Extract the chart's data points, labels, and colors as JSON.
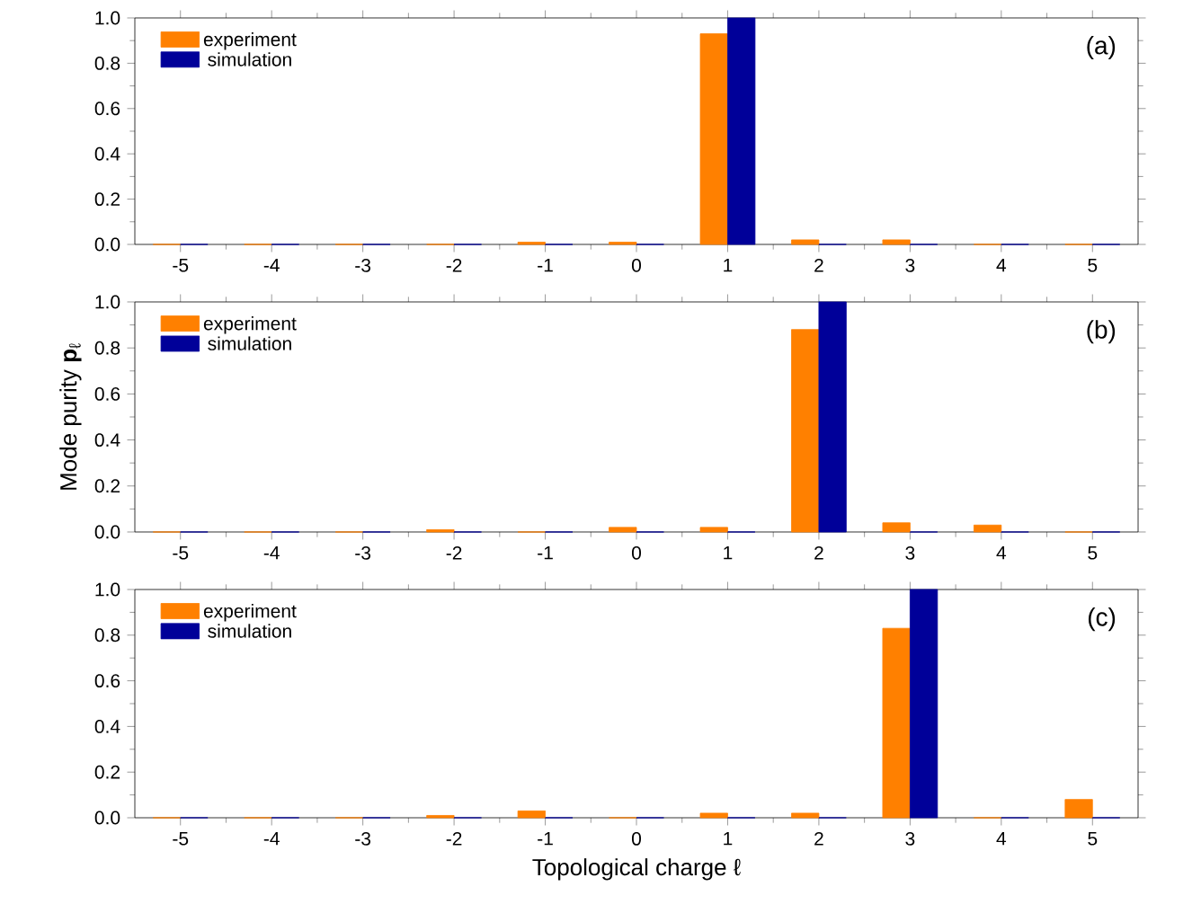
{
  "chart_data": [
    {
      "type": "bar",
      "categories": [
        "-5",
        "-4",
        "-3",
        "-2",
        "-1",
        "0",
        "1",
        "2",
        "3",
        "4",
        "5"
      ],
      "series": [
        {
          "name": "experiment",
          "color": "#ff8000",
          "values": [
            0,
            0,
            0,
            0,
            0.01,
            0.01,
            0.93,
            0.02,
            0.02,
            0,
            0
          ]
        },
        {
          "name": "simulation",
          "color": "#000099",
          "values": [
            0,
            0,
            0,
            0,
            0,
            0,
            1.0,
            0,
            0,
            0,
            0
          ]
        }
      ],
      "ylim": [
        0,
        1
      ],
      "yticks": [
        {
          "value": 0,
          "label": "0.0"
        },
        {
          "value": 0.2,
          "label": "0.2"
        },
        {
          "value": 0.4,
          "label": "0.4"
        },
        {
          "value": 0.6,
          "label": "0.6"
        },
        {
          "value": 0.8,
          "label": "0.8"
        },
        {
          "value": 1,
          "label": "1.0"
        }
      ],
      "annotations": [
        "(a)"
      ],
      "legend": "top left",
      "grid": false
    },
    {
      "type": "bar",
      "categories": [
        "-5",
        "-4",
        "-3",
        "-2",
        "-1",
        "0",
        "1",
        "2",
        "3",
        "4",
        "5"
      ],
      "series": [
        {
          "name": "experiment",
          "color": "#ff8000",
          "values": [
            0,
            0,
            0,
            0.01,
            0,
            0.02,
            0.02,
            0.88,
            0.04,
            0.03,
            0
          ]
        },
        {
          "name": "simulation",
          "color": "#000099",
          "values": [
            0,
            0,
            0,
            0,
            0,
            0,
            0,
            1.0,
            0,
            0,
            0
          ]
        }
      ],
      "ylim": [
        0,
        1
      ],
      "yticks": [
        {
          "value": 0,
          "label": "0.0"
        },
        {
          "value": 0.2,
          "label": "0.2"
        },
        {
          "value": 0.4,
          "label": "0.4"
        },
        {
          "value": 0.6,
          "label": "0.6"
        },
        {
          "value": 0.8,
          "label": "0.8"
        },
        {
          "value": 1,
          "label": "1.0"
        }
      ],
      "ylabel": "Mode purity **p**$_{ℓ}$",
      "annotations": [
        "(b)"
      ],
      "legend": "top left",
      "grid": false
    },
    {
      "type": "bar",
      "categories": [
        "-5",
        "-4",
        "-3",
        "-2",
        "-1",
        "0",
        "1",
        "2",
        "3",
        "4",
        "5"
      ],
      "series": [
        {
          "name": "experiment",
          "color": "#ff8000",
          "values": [
            0,
            0,
            0,
            0.01,
            0.03,
            0,
            0.02,
            0.02,
            0.83,
            0,
            0.08
          ]
        },
        {
          "name": "simulation",
          "color": "#000099",
          "values": [
            0,
            0,
            0,
            0,
            0,
            0,
            0,
            0,
            1.0,
            0,
            0
          ]
        }
      ],
      "ylim": [
        0,
        1
      ],
      "yticks": [
        {
          "value": 0,
          "label": "0.0"
        },
        {
          "value": 0.2,
          "label": "0.2"
        },
        {
          "value": 0.4,
          "label": "0.4"
        },
        {
          "value": 0.6,
          "label": "0.6"
        },
        {
          "value": 0.8,
          "label": "0.8"
        },
        {
          "value": 1,
          "label": "1.0"
        }
      ],
      "xlabel": "Topological charge ℓ",
      "annotations": [
        "(c)"
      ],
      "legend": "top left",
      "grid": false
    }
  ]
}
